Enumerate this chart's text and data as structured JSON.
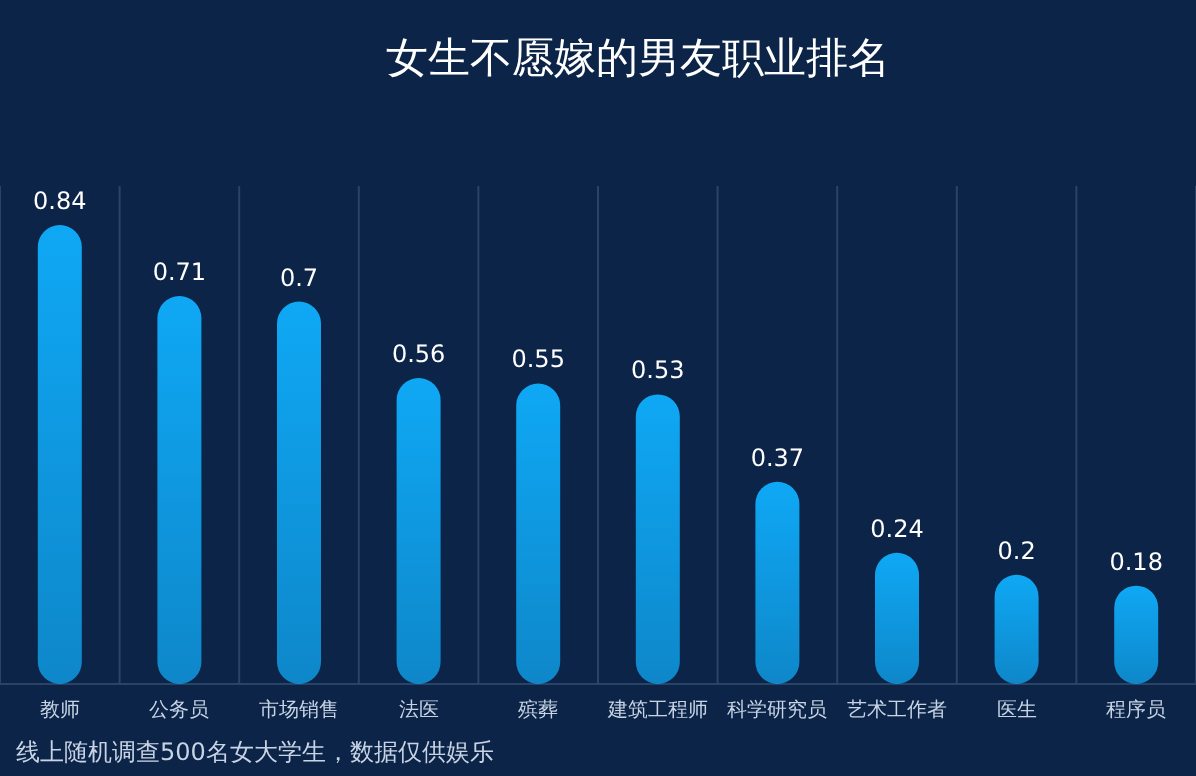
{
  "chart_data": {
    "type": "bar",
    "title": "女生不愿嫁的男友职业排名",
    "categories": [
      "教师",
      "公务员",
      "市场销售",
      "法医",
      "殡葬",
      "建筑工程师",
      "科学研究员",
      "艺术工作者",
      "医生",
      "程序员"
    ],
    "values": [
      0.84,
      0.71,
      0.7,
      0.56,
      0.55,
      0.53,
      0.37,
      0.24,
      0.2,
      0.18
    ],
    "color": "#0fa8f5",
    "data_labels": true,
    "grid": "x",
    "annotations": [
      "线上随机调查500名女大学生，数据仅供娱乐"
    ]
  }
}
